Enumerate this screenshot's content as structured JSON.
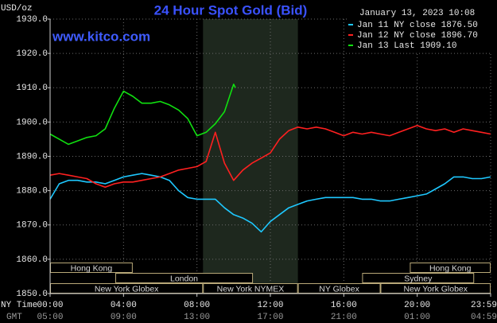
{
  "chart_data": {
    "type": "line",
    "title": "24 Hour Spot Gold (Bid)",
    "date": "January 13, 2023 10:08",
    "site": "www.kitco.com",
    "y_label": "USD/oz",
    "x_row_labels": [
      "NY Time",
      "GMT"
    ],
    "xlim": [
      0,
      24
    ],
    "ylim": [
      1850,
      1930
    ],
    "yticks": [
      {
        "value": 1850,
        "label": "1850.0"
      },
      {
        "value": 1860,
        "label": "1860.0"
      },
      {
        "value": 1870,
        "label": "1870.0"
      },
      {
        "value": 1880,
        "label": "1880.0"
      },
      {
        "value": 1890,
        "label": "1890.0"
      },
      {
        "value": 1900,
        "label": "1900.0"
      },
      {
        "value": 1910,
        "label": "1910.0"
      },
      {
        "value": 1920,
        "label": "1920.0"
      },
      {
        "value": 1930,
        "label": "1930.0"
      }
    ],
    "xticks": [
      {
        "value": 0,
        "label": "00:00"
      },
      {
        "value": 4,
        "label": "04:00"
      },
      {
        "value": 8,
        "label": "08:00"
      },
      {
        "value": 12,
        "label": "12:00"
      },
      {
        "value": 16,
        "label": "16:00"
      },
      {
        "value": 20,
        "label": "20:00"
      },
      {
        "value": 24,
        "label": "23:59"
      }
    ],
    "gmt_tick_labels": [
      "05:00",
      "09:00",
      "13:00",
      "17:00",
      "21:00",
      "01:00",
      "04:59"
    ],
    "grid": true,
    "legend_position": "top-right",
    "highlight": {
      "start": 8.33,
      "end": 13.5,
      "color": "#1e281e"
    },
    "session_rows": [
      [
        {
          "label": "Hong Kong",
          "start": 0,
          "end": 4.5
        },
        {
          "label": "Hong Kong",
          "start": 19.6,
          "end": 24
        }
      ],
      [
        {
          "label": "London",
          "start": 3.55,
          "end": 11.05
        },
        {
          "label": "Sydney",
          "start": 17,
          "end": 23.1
        }
      ],
      [
        {
          "label": "New York Globex",
          "start": 0,
          "end": 8.33
        },
        {
          "label": "New York NYMEX",
          "start": 8.33,
          "end": 13.5
        },
        {
          "label": "NY Globex",
          "start": 13.5,
          "end": 18
        },
        {
          "label": "New York Globex",
          "start": 18,
          "end": 24
        }
      ]
    ],
    "series": [
      {
        "name": "Jan 11 NY close 1876.50",
        "color": "#1ec8ff",
        "x": [
          0,
          0.5,
          1,
          1.5,
          2,
          2.5,
          3,
          3.5,
          4,
          4.5,
          5,
          5.5,
          6,
          6.5,
          7,
          7.5,
          8,
          8.5,
          9,
          9.5,
          10,
          10.5,
          11,
          11.5,
          12,
          12.5,
          13,
          13.5,
          14,
          14.5,
          15,
          15.5,
          16,
          16.5,
          17,
          17.5,
          18,
          18.5,
          19,
          19.5,
          20,
          20.5,
          21,
          21.5,
          22,
          22.5,
          23,
          23.5,
          24
        ],
        "values": [
          1877.5,
          1882,
          1883,
          1883,
          1882.5,
          1882.5,
          1882,
          1883,
          1884,
          1884.5,
          1885,
          1884.5,
          1884,
          1883,
          1880,
          1878,
          1877.5,
          1877.5,
          1877.5,
          1875,
          1873,
          1872,
          1870.5,
          1868,
          1871,
          1873,
          1875,
          1876,
          1877,
          1877.5,
          1878,
          1878,
          1878,
          1878,
          1877.5,
          1877.5,
          1877,
          1877,
          1877.5,
          1878,
          1878.5,
          1879,
          1880.5,
          1882,
          1884,
          1884,
          1883.5,
          1883.5,
          1884
        ]
      },
      {
        "name": "Jan 12 NY close 1896.70",
        "color": "#ff2020",
        "x": [
          0,
          0.5,
          1,
          1.5,
          2,
          2.5,
          3,
          3.5,
          4,
          4.5,
          5,
          5.5,
          6,
          6.5,
          7,
          7.5,
          8,
          8.5,
          9,
          9.5,
          10,
          10.5,
          11,
          11.5,
          12,
          12.5,
          13,
          13.5,
          14,
          14.5,
          15,
          15.5,
          16,
          16.5,
          17,
          17.5,
          18,
          18.5,
          19,
          19.5,
          20,
          20.5,
          21,
          21.5,
          22,
          22.5,
          23,
          23.5,
          24
        ],
        "values": [
          1884.5,
          1885,
          1884.5,
          1884,
          1883.5,
          1882,
          1881,
          1882,
          1882.5,
          1882.5,
          1883,
          1883.5,
          1884,
          1885,
          1886,
          1886.5,
          1887,
          1888.5,
          1897,
          1888,
          1883,
          1886,
          1888,
          1889.5,
          1891,
          1895,
          1897.5,
          1898.5,
          1898,
          1898.5,
          1898,
          1897,
          1896,
          1897,
          1896.5,
          1897,
          1896.5,
          1896,
          1897,
          1898,
          1899,
          1898,
          1897.5,
          1898,
          1897,
          1898,
          1897.5,
          1897,
          1896.5
        ]
      },
      {
        "name": "Jan 13 Last 1909.10",
        "color": "#10e010",
        "x": [
          0,
          0.5,
          1,
          1.5,
          2,
          2.5,
          3,
          3.5,
          4,
          4.5,
          5,
          5.5,
          6,
          6.5,
          7,
          7.5,
          8,
          8.5,
          9,
          9.5,
          10,
          10.1
        ],
        "values": [
          1896.5,
          1895,
          1893.5,
          1894.5,
          1895.5,
          1896,
          1898,
          1904,
          1909,
          1907.5,
          1905.5,
          1905.5,
          1906,
          1905,
          1903.5,
          1901,
          1896,
          1897,
          1899.5,
          1903,
          1911,
          1910
        ]
      }
    ]
  }
}
